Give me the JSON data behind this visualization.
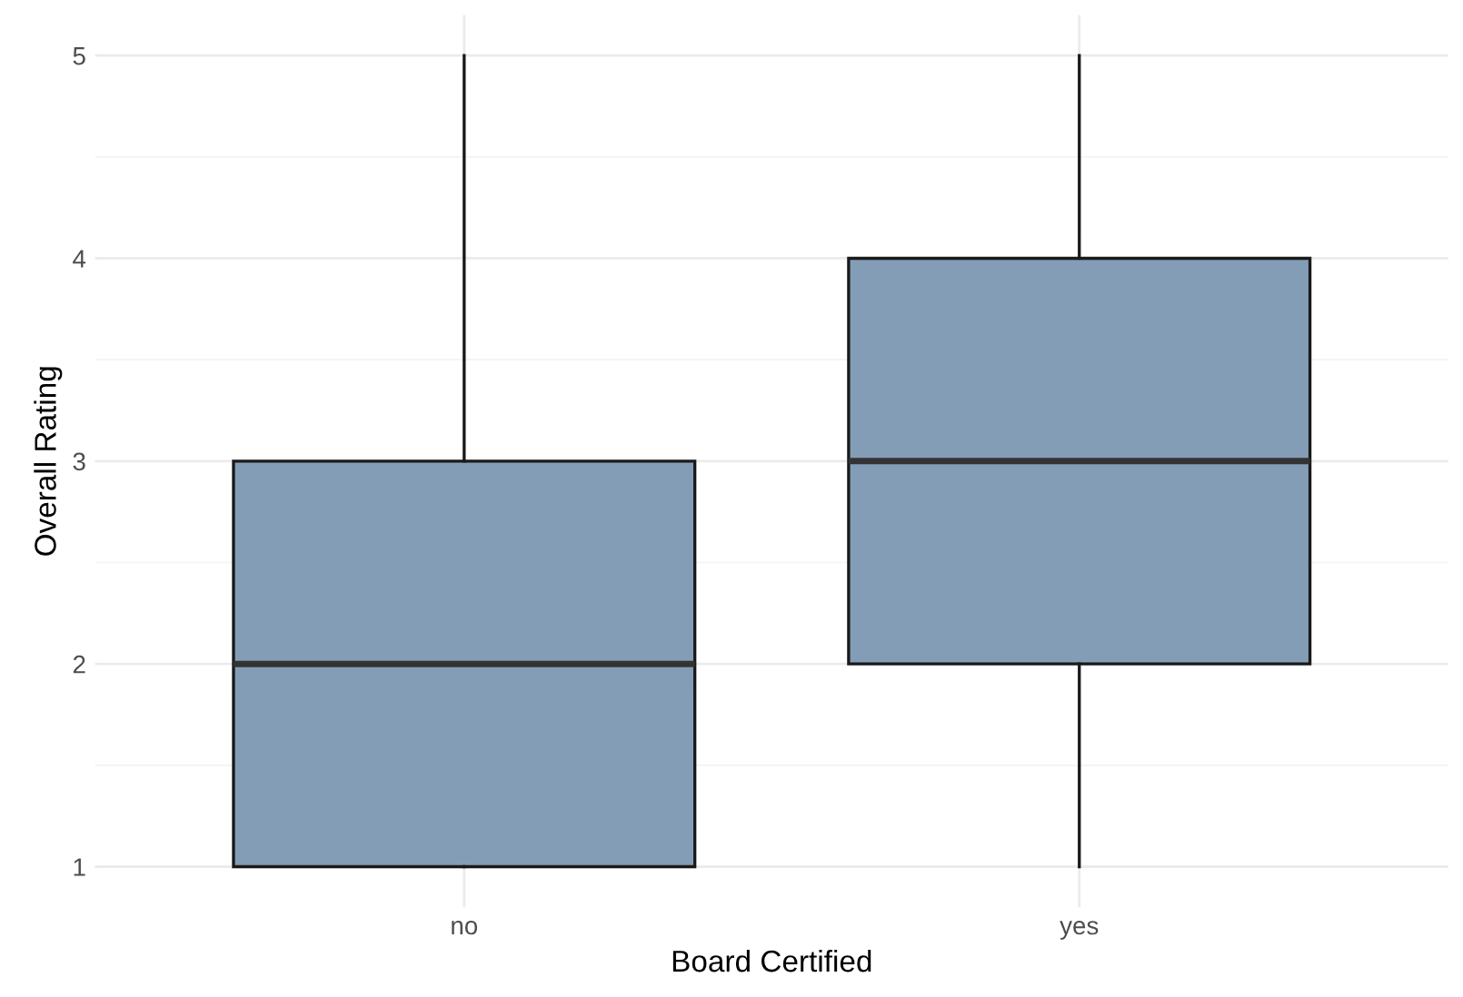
{
  "chart_data": {
    "type": "box",
    "xlabel": "Board Certified",
    "ylabel": "Overall Rating",
    "categories": [
      "no",
      "yes"
    ],
    "boxes": [
      {
        "low": 1,
        "q1": 1,
        "median": 2,
        "q3": 3,
        "high": 5
      },
      {
        "low": 1,
        "q1": 2,
        "median": 3,
        "q3": 4,
        "high": 5
      }
    ],
    "color": "#849db6",
    "ylim": [
      0.8,
      5.2
    ],
    "yticks": [
      1,
      2,
      3,
      4,
      5
    ],
    "grid": true,
    "legend": false
  }
}
